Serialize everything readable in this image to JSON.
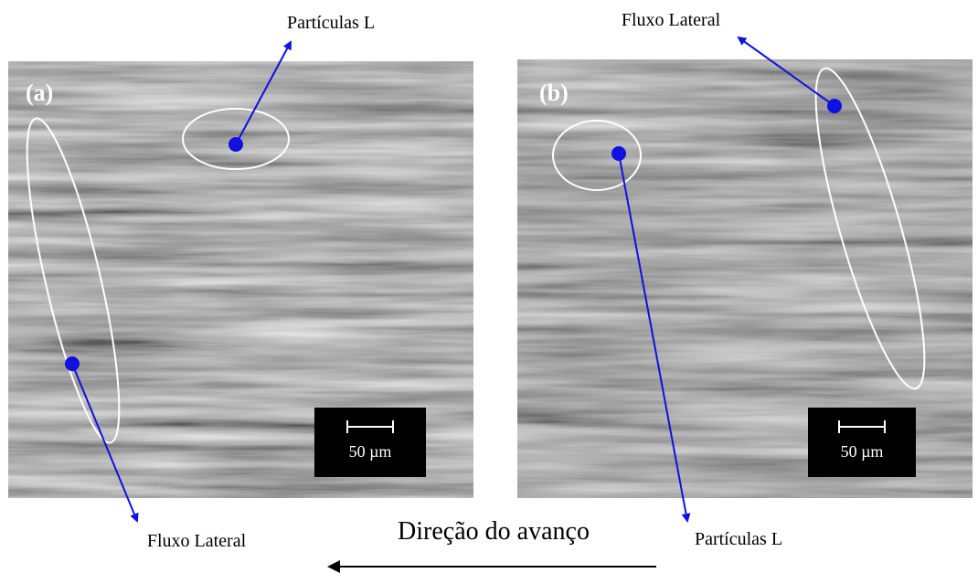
{
  "panel_a": {
    "label": "(a)",
    "scale": "50 µm",
    "top_annotation": "Partículas L",
    "bottom_annotation": "Fluxo Lateral"
  },
  "panel_b": {
    "label": "(b)",
    "scale": "50 µm",
    "top_annotation": "Fluxo Lateral",
    "bottom_annotation": "Partículas L"
  },
  "direction": "Direção do avanço"
}
